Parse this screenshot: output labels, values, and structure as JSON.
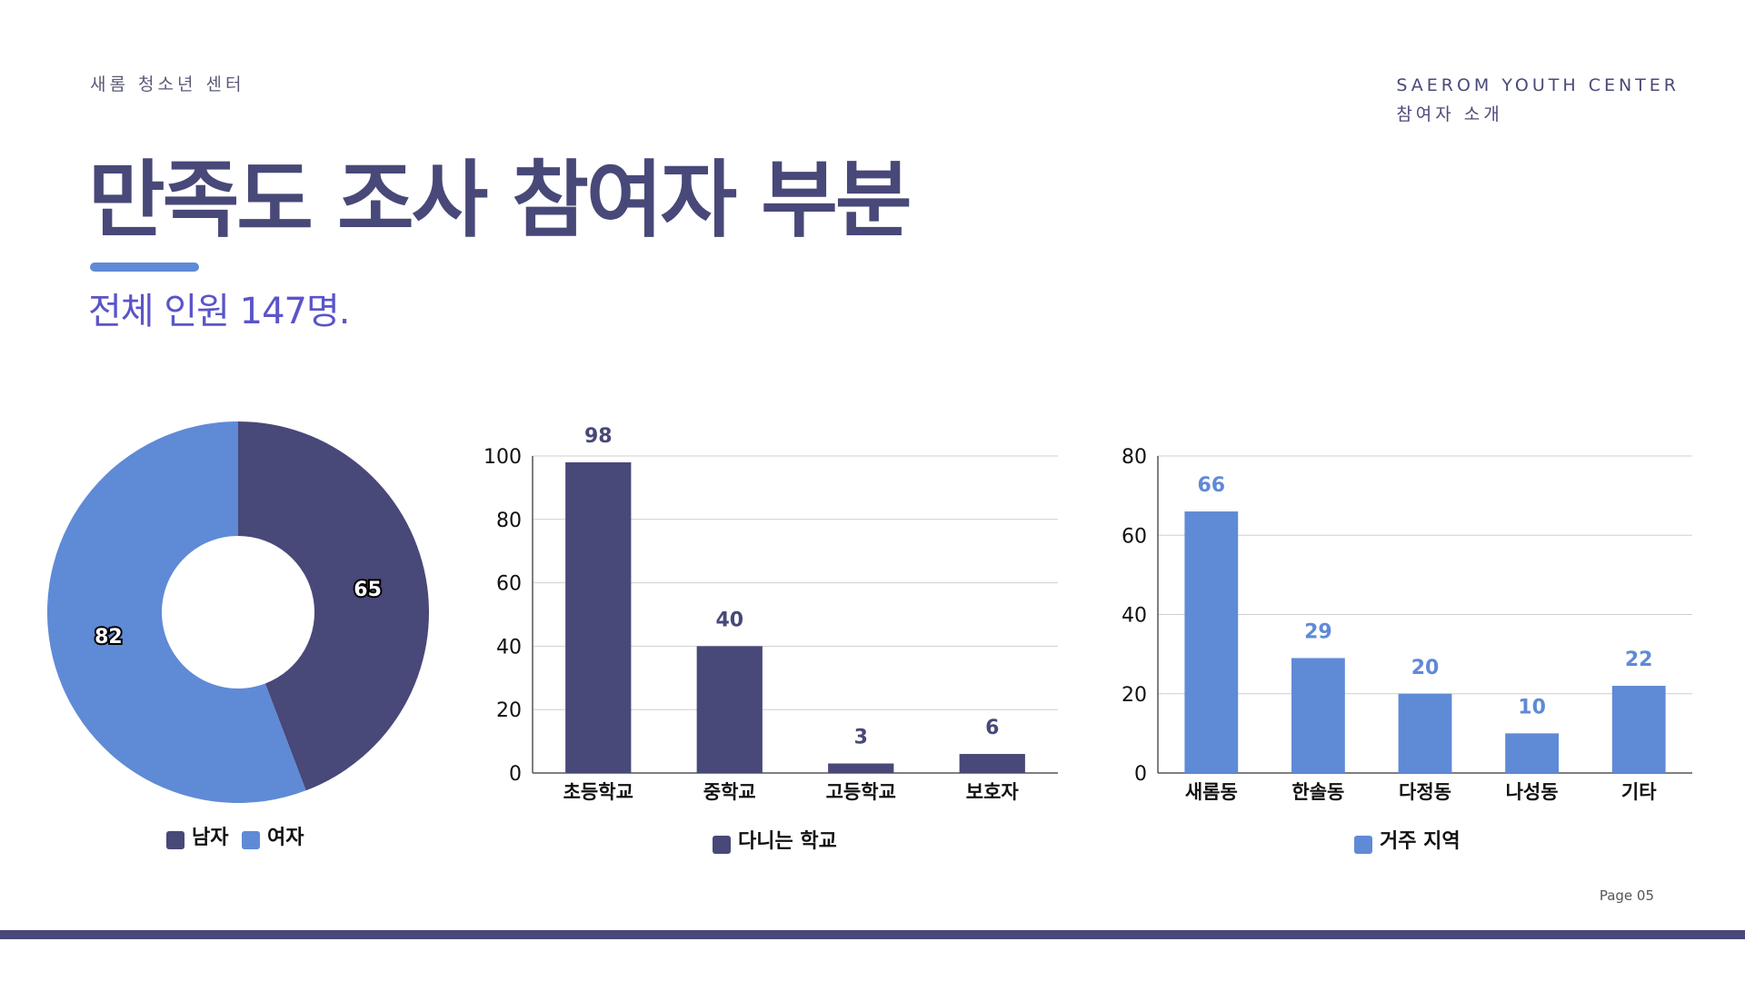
{
  "header": {
    "org_name": "새롬 청소년 센터",
    "brand_en": "SAEROM YOUTH CENTER",
    "brand_ko": "참여자 소개"
  },
  "title": "만족도 조사 참여자 부분",
  "subtitle": "전체 인원 147명.",
  "page_label": "Page 05",
  "colors": {
    "dark": "#484879",
    "blue": "#5f8ad6",
    "accent": "#5a55c8"
  },
  "chart_data": [
    {
      "type": "pie",
      "donut": true,
      "categories": [
        "남자",
        "여자"
      ],
      "values": [
        65,
        82
      ],
      "colors": [
        "#484879",
        "#5f8ad6"
      ],
      "legend": "bottom"
    },
    {
      "type": "bar",
      "categories": [
        "초등학교",
        "중학교",
        "고등학교",
        "보호자"
      ],
      "series": [
        {
          "name": "다니는 학교",
          "values": [
            98,
            40,
            3,
            6
          ],
          "color": "#484879"
        }
      ],
      "yticks": [
        0,
        20,
        40,
        60,
        80,
        100
      ],
      "ylim": [
        0,
        100
      ],
      "grid": true,
      "legend": "bottom"
    },
    {
      "type": "bar",
      "categories": [
        "새롬동",
        "한솔동",
        "다정동",
        "나성동",
        "기타"
      ],
      "series": [
        {
          "name": "거주 지역",
          "values": [
            66,
            29,
            20,
            10,
            22
          ],
          "color": "#5f8ad6"
        }
      ],
      "yticks": [
        0,
        20,
        40,
        60,
        80
      ],
      "ylim": [
        0,
        80
      ],
      "grid": true,
      "legend": "bottom"
    }
  ]
}
